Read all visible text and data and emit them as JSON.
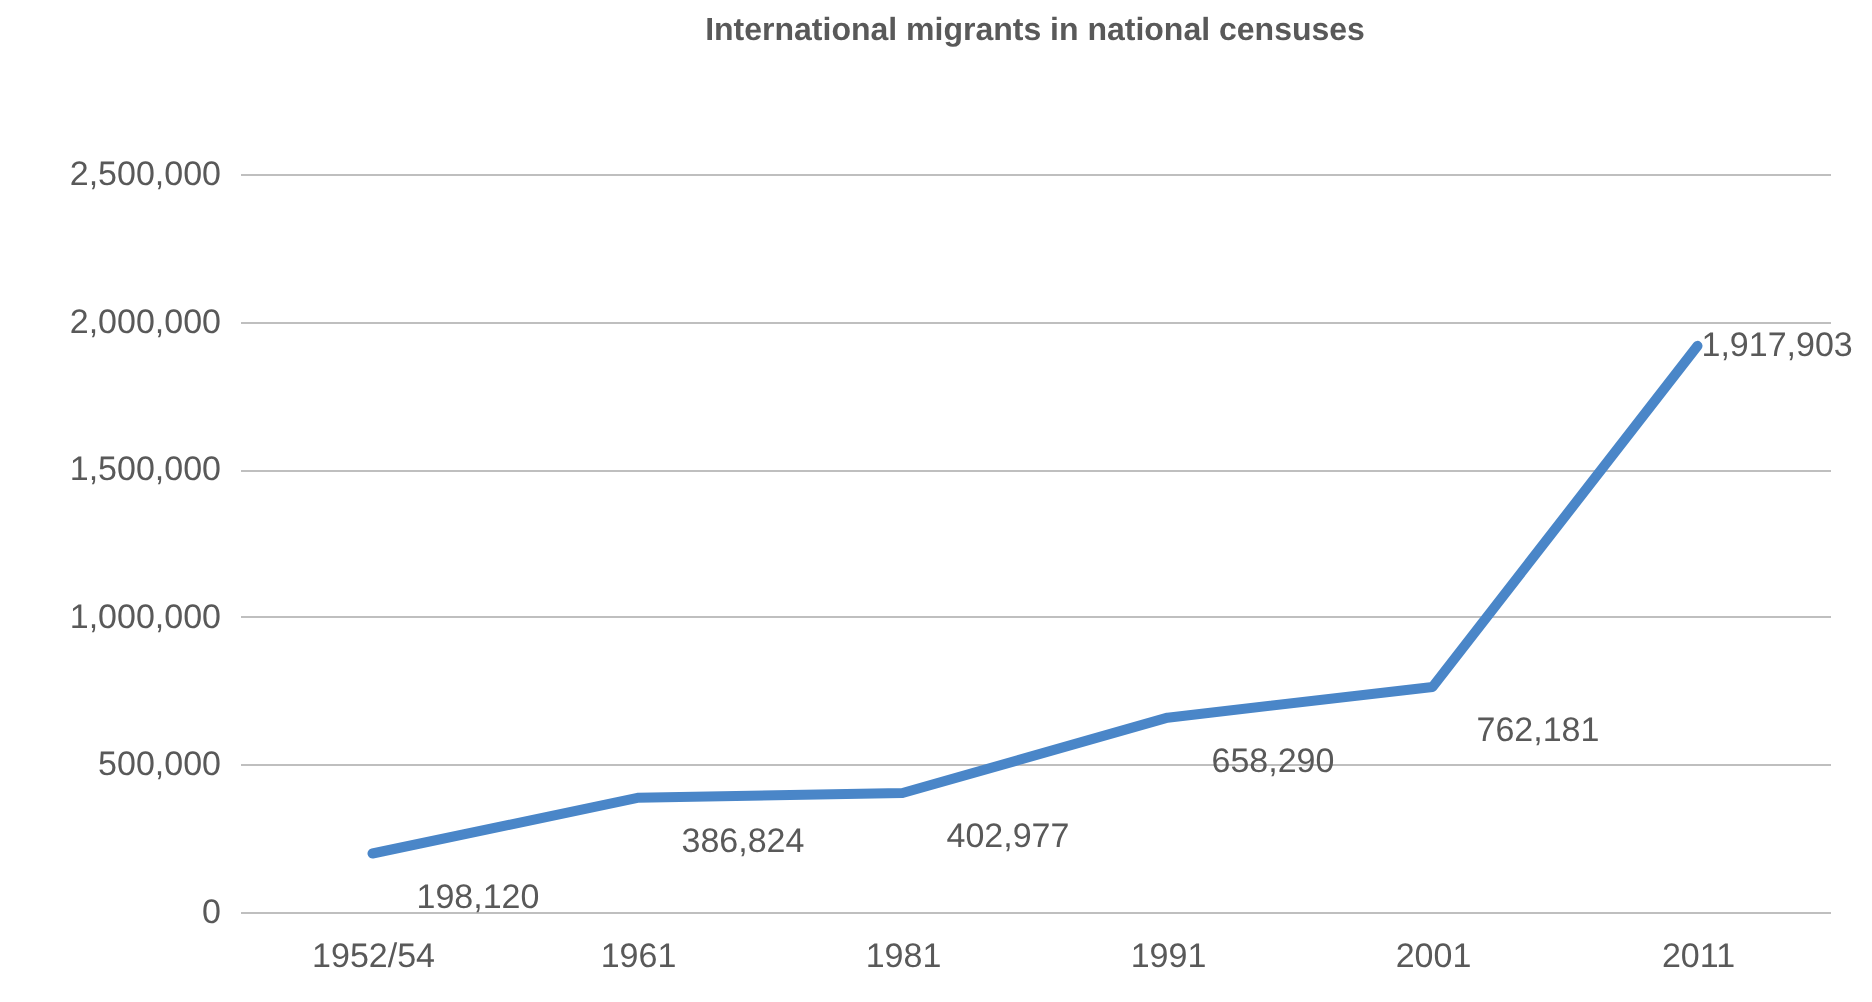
{
  "chart_data": {
    "type": "line",
    "title": "International migrants in national censuses",
    "categories": [
      "1952/54",
      "1961",
      "1981",
      "1991",
      "2001",
      "2011"
    ],
    "series": [
      {
        "color": "#4a86c8",
        "values": [
          198120,
          386824,
          402977,
          658290,
          762181,
          1917903
        ],
        "value_labels": [
          "198,120",
          "386,824",
          "402,977",
          "658,290",
          "762,181",
          "1,917,903"
        ]
      }
    ],
    "ylim": [
      0,
      2500000
    ],
    "yticks": [
      0,
      {
        "value": 500000,
        "label": "500,000"
      },
      {
        "value": 1000000,
        "label": "1,000,000"
      },
      {
        "value": 1500000,
        "label": "1,500,000"
      },
      {
        "value": 2000000,
        "label": "2,000,000"
      },
      {
        "value": 2500000,
        "label": "2,500,000"
      }
    ],
    "grid": "y",
    "marker": "none",
    "line_style": "solid"
  }
}
